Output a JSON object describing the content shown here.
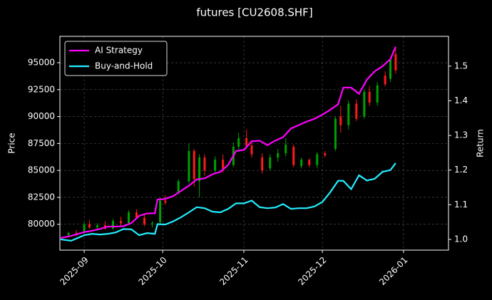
{
  "chart_data": {
    "type": "candlestick",
    "title": "futures [CU2608.SHF]",
    "ylabel": "Price",
    "y2label": "Return",
    "xlim": [
      -9.3,
      139.2
    ],
    "xticks": [
      {
        "value": 0,
        "label": "2025-09"
      },
      {
        "value": 30,
        "label": "2025-10"
      },
      {
        "value": 61,
        "label": "2025-11"
      },
      {
        "value": 91,
        "label": "2025-12"
      },
      {
        "value": 122,
        "label": "2026-01"
      }
    ],
    "ylim": [
      77600,
      97450
    ],
    "yticks": [
      80000,
      82500,
      85000,
      87500,
      90000,
      92500,
      95000
    ],
    "y2lim": [
      0.969,
      1.586
    ],
    "y2ticks": [
      {
        "value": 1,
        "label": "1.0"
      },
      1.1,
      1.2,
      1.3,
      1.4,
      1.5
    ],
    "grid": true,
    "legend": "upper left",
    "up_color": "#00a000",
    "down_color": "#ff1a1a",
    "ohlc": {
      "x": [
        -6,
        -3,
        0,
        2,
        5,
        8,
        11,
        14,
        17,
        20,
        23,
        26,
        29,
        31,
        36,
        40,
        42,
        44,
        46,
        50,
        53,
        57,
        59,
        62,
        64,
        68,
        71,
        74,
        77,
        80,
        83,
        86,
        89,
        92,
        96,
        98,
        101,
        104,
        107,
        109,
        112,
        115,
        117,
        119
      ],
      "open": [
        79000,
        79200,
        79300,
        80000,
        79700,
        79900,
        79600,
        80300,
        80100,
        81100,
        80600,
        80000,
        80200,
        82200,
        83000,
        84000,
        86800,
        84000,
        86200,
        85000,
        86000,
        85500,
        87200,
        88000,
        87300,
        86200,
        85200,
        86200,
        86600,
        87200,
        85400,
        86000,
        85500,
        86600,
        87000,
        90000,
        89200,
        91200,
        90000,
        92300,
        91300,
        93800,
        93500,
        95800
      ],
      "high": [
        79300,
        79500,
        80200,
        80400,
        80100,
        80300,
        80500,
        80700,
        81300,
        81400,
        80900,
        80300,
        82500,
        82700,
        84200,
        87500,
        87000,
        86500,
        86500,
        86300,
        86500,
        87600,
        88500,
        88800,
        87800,
        86600,
        86500,
        87000,
        88000,
        87400,
        86200,
        86100,
        86700,
        86800,
        90000,
        91000,
        91500,
        91600,
        92500,
        92800,
        93200,
        94200,
        95500,
        96300
      ],
      "low": [
        78800,
        78900,
        79100,
        79600,
        79400,
        79500,
        79500,
        79900,
        80000,
        80500,
        79800,
        79700,
        80000,
        81800,
        82800,
        83800,
        83500,
        82500,
        84500,
        84800,
        84800,
        85300,
        86800,
        87000,
        86200,
        84700,
        85000,
        85800,
        86300,
        85300,
        85200,
        85300,
        85200,
        86200,
        86800,
        88500,
        88800,
        89600,
        89800,
        91000,
        91000,
        92800,
        93200,
        94000
      ],
      "close": [
        79200,
        79100,
        80000,
        79700,
        79900,
        79600,
        80300,
        80100,
        81100,
        80600,
        80000,
        80100,
        82200,
        82000,
        84000,
        86800,
        84200,
        86200,
        85000,
        86000,
        85200,
        87200,
        88000,
        87300,
        86500,
        85000,
        86200,
        86600,
        87400,
        85500,
        86000,
        85500,
        86500,
        86400,
        89800,
        89200,
        91200,
        89800,
        92300,
        91300,
        92900,
        93000,
        95300,
        94300
      ]
    },
    "lines": {
      "x": [
        -9,
        -5,
        0,
        3,
        6,
        9,
        12,
        15,
        18,
        21,
        24,
        27,
        28,
        31,
        34,
        37,
        40,
        43,
        46,
        49,
        52,
        55,
        58,
        61,
        64,
        67,
        70,
        73,
        76,
        79,
        82,
        85,
        88,
        91,
        94,
        97,
        99,
        102,
        105,
        108,
        111,
        114,
        117,
        119
      ],
      "series": [
        {
          "name": "AI Strategy",
          "color": "#ff00ff",
          "axis": "y2",
          "values": [
            1.004,
            1.01,
            1.021,
            1.025,
            1.03,
            1.037,
            1.037,
            1.038,
            1.047,
            1.068,
            1.075,
            1.075,
            1.115,
            1.117,
            1.125,
            1.14,
            1.155,
            1.173,
            1.176,
            1.188,
            1.195,
            1.215,
            1.255,
            1.258,
            1.283,
            1.285,
            1.272,
            1.285,
            1.295,
            1.32,
            1.33,
            1.34,
            1.348,
            1.36,
            1.374,
            1.39,
            1.438,
            1.438,
            1.42,
            1.461,
            1.485,
            1.5,
            1.52,
            1.556
          ]
        },
        {
          "name": "Buy-and-Hold",
          "color": "#22eeff",
          "axis": "y2",
          "values": [
            1.0,
            0.996,
            1.012,
            1.016,
            1.014,
            1.016,
            1.02,
            1.03,
            1.029,
            1.012,
            1.018,
            1.016,
            1.044,
            1.043,
            1.052,
            1.064,
            1.078,
            1.093,
            1.09,
            1.08,
            1.078,
            1.088,
            1.104,
            1.104,
            1.112,
            1.093,
            1.09,
            1.092,
            1.102,
            1.088,
            1.09,
            1.09,
            1.095,
            1.108,
            1.136,
            1.169,
            1.169,
            1.145,
            1.185,
            1.17,
            1.175,
            1.195,
            1.2,
            1.22
          ]
        }
      ]
    }
  }
}
